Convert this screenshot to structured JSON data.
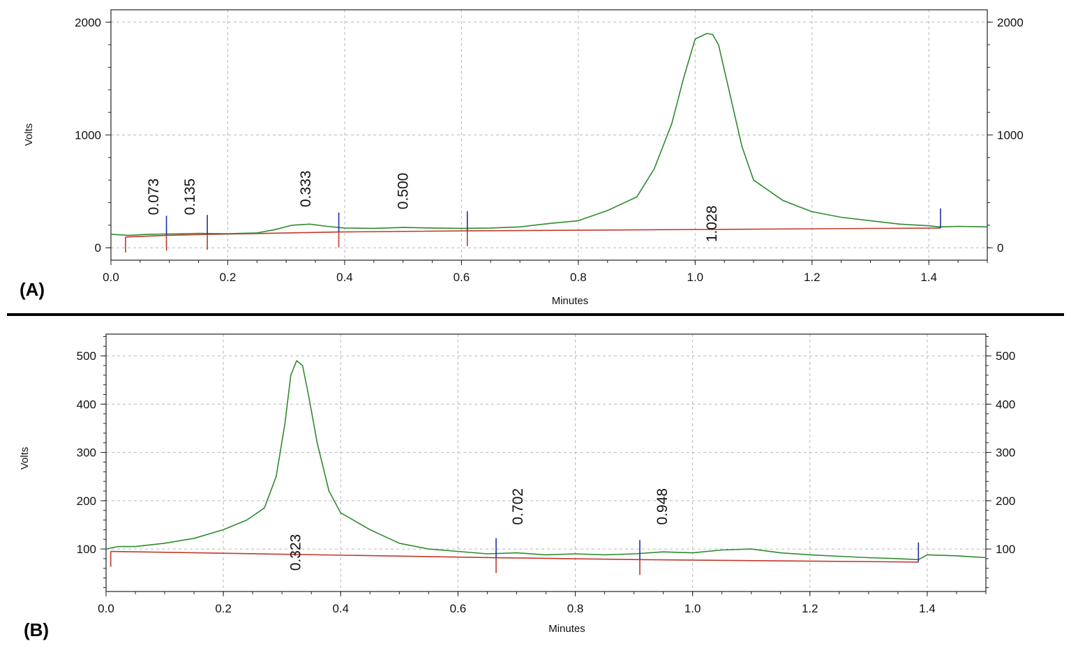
{
  "colors": {
    "trace": "#2e8b2e",
    "baseline": "#c0392b",
    "start_marker": "#1f2f9e",
    "end_marker": "#c0392b",
    "grid": "#b8b8b8",
    "frame": "#222222",
    "divider": "#000000"
  },
  "chart_data": [
    {
      "type": "line",
      "panel_label": "(A)",
      "xlabel": "Minutes",
      "ylabel": "Volts",
      "xlim": [
        0,
        1.5
      ],
      "ylim": [
        -110,
        2110
      ],
      "x_ticks": [
        "0.0",
        "0.2",
        "0.4",
        "0.6",
        "0.8",
        "1.0",
        "1.2",
        "1.4"
      ],
      "y_ticks": [
        "0",
        "1000",
        "2000"
      ],
      "y_tick_values": [
        0,
        1000,
        2000
      ],
      "right_axis": true,
      "grid": true,
      "series": [
        {
          "points": [
            [
              0,
              120
            ],
            [
              0.03,
              110
            ],
            [
              0.06,
              118
            ],
            [
              0.09,
              122
            ],
            [
              0.12,
              124
            ],
            [
              0.15,
              128
            ],
            [
              0.2,
              125
            ],
            [
              0.25,
              132
            ],
            [
              0.28,
              160
            ],
            [
              0.31,
              200
            ],
            [
              0.34,
              210
            ],
            [
              0.37,
              190
            ],
            [
              0.4,
              175
            ],
            [
              0.45,
              172
            ],
            [
              0.5,
              180
            ],
            [
              0.55,
              175
            ],
            [
              0.6,
              172
            ],
            [
              0.65,
              175
            ],
            [
              0.7,
              185
            ],
            [
              0.75,
              215
            ],
            [
              0.8,
              240
            ],
            [
              0.85,
              330
            ],
            [
              0.9,
              450
            ],
            [
              0.93,
              700
            ],
            [
              0.96,
              1100
            ],
            [
              0.98,
              1500
            ],
            [
              1.0,
              1850
            ],
            [
              1.02,
              1900
            ],
            [
              1.03,
              1890
            ],
            [
              1.04,
              1800
            ],
            [
              1.06,
              1350
            ],
            [
              1.08,
              900
            ],
            [
              1.1,
              600
            ],
            [
              1.15,
              420
            ],
            [
              1.2,
              320
            ],
            [
              1.25,
              270
            ],
            [
              1.3,
              240
            ],
            [
              1.35,
              210
            ],
            [
              1.4,
              195
            ],
            [
              1.42,
              185
            ],
            [
              1.45,
              190
            ],
            [
              1.5,
              185
            ]
          ]
        }
      ],
      "baselines": [
        [
          [
            0.025,
            95
          ],
          [
            0.095,
            110
          ]
        ],
        [
          [
            0.095,
            110
          ],
          [
            0.165,
            118
          ]
        ],
        [
          [
            0.165,
            118
          ],
          [
            0.39,
            140
          ]
        ],
        [
          [
            0.39,
            140
          ],
          [
            0.61,
            150
          ]
        ],
        [
          [
            0.61,
            150
          ],
          [
            1.42,
            175
          ]
        ]
      ],
      "start_markers": [
        0.095,
        0.165,
        0.39,
        0.61,
        1.42
      ],
      "end_markers": [
        0.025,
        0.095,
        0.165,
        0.39,
        0.61
      ],
      "peak_labels": [
        {
          "text": "0.073",
          "x": 0.073,
          "y": 290
        },
        {
          "text": "0.135",
          "x": 0.135,
          "y": 290
        },
        {
          "text": "0.333",
          "x": 0.333,
          "y": 360
        },
        {
          "text": "0.500",
          "x": 0.5,
          "y": 340
        },
        {
          "text": "1.028",
          "x": 1.028,
          "y": 50
        }
      ]
    },
    {
      "type": "line",
      "panel_label": "(B)",
      "xlabel": "Minutes",
      "ylabel": "Volts",
      "xlim": [
        0,
        1.5
      ],
      "ylim": [
        12,
        545
      ],
      "x_ticks": [
        "0.0",
        "0.2",
        "0.4",
        "0.6",
        "0.8",
        "1.0",
        "1.2",
        "1.4"
      ],
      "y_ticks": [
        "100",
        "200",
        "300",
        "400",
        "500"
      ],
      "y_tick_values": [
        100,
        200,
        300,
        400,
        500
      ],
      "right_axis": true,
      "grid": true,
      "series": [
        {
          "points": [
            [
              0,
              100
            ],
            [
              0.02,
              105
            ],
            [
              0.05,
              105
            ],
            [
              0.1,
              112
            ],
            [
              0.15,
              122
            ],
            [
              0.2,
              140
            ],
            [
              0.24,
              160
            ],
            [
              0.27,
              185
            ],
            [
              0.29,
              250
            ],
            [
              0.305,
              360
            ],
            [
              0.315,
              460
            ],
            [
              0.325,
              490
            ],
            [
              0.335,
              480
            ],
            [
              0.345,
              420
            ],
            [
              0.36,
              320
            ],
            [
              0.38,
              220
            ],
            [
              0.4,
              175
            ],
            [
              0.45,
              140
            ],
            [
              0.5,
              112
            ],
            [
              0.55,
              100
            ],
            [
              0.6,
              95
            ],
            [
              0.65,
              90
            ],
            [
              0.7,
              92
            ],
            [
              0.75,
              88
            ],
            [
              0.8,
              90
            ],
            [
              0.85,
              88
            ],
            [
              0.9,
              90
            ],
            [
              0.95,
              94
            ],
            [
              1.0,
              92
            ],
            [
              1.05,
              98
            ],
            [
              1.1,
              100
            ],
            [
              1.15,
              92
            ],
            [
              1.2,
              88
            ],
            [
              1.25,
              85
            ],
            [
              1.3,
              82
            ],
            [
              1.35,
              80
            ],
            [
              1.385,
              78
            ],
            [
              1.4,
              88
            ],
            [
              1.45,
              86
            ],
            [
              1.5,
              82
            ]
          ]
        }
      ],
      "baselines": [
        [
          [
            0.008,
            95
          ],
          [
            0.665,
            82
          ]
        ],
        [
          [
            0.665,
            82
          ],
          [
            0.91,
            78
          ]
        ],
        [
          [
            0.91,
            78
          ],
          [
            1.385,
            73
          ]
        ]
      ],
      "start_markers": [
        0.665,
        0.91,
        1.385
      ],
      "end_markers": [
        0.008,
        0.665,
        0.91
      ],
      "peak_labels": [
        {
          "text": "0.323",
          "x": 0.323,
          "y": 55
        },
        {
          "text": "0.702",
          "x": 0.702,
          "y": 150
        },
        {
          "text": "0.948",
          "x": 0.948,
          "y": 150
        }
      ]
    }
  ]
}
